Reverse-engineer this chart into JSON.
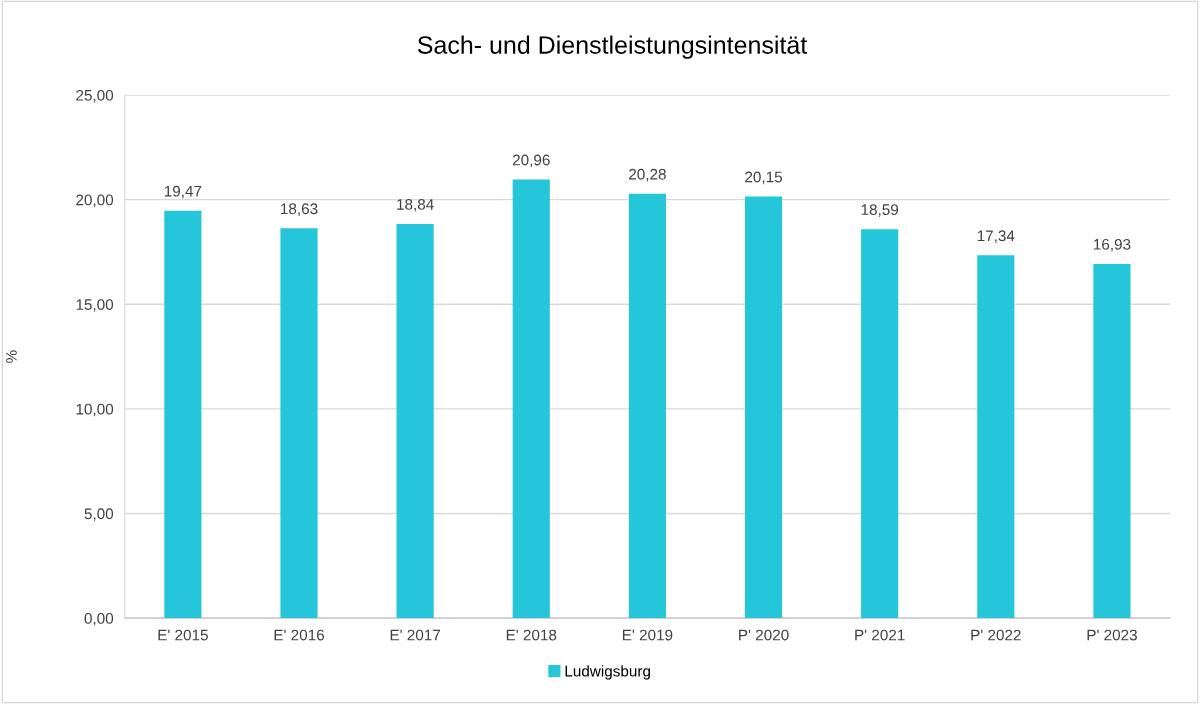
{
  "chart_data": {
    "type": "bar",
    "title": "Sach- und Dienstleistungsintensität",
    "ylabel": "%",
    "categories": [
      "E' 2015",
      "E' 2016",
      "E' 2017",
      "E' 2018",
      "E' 2019",
      "P' 2020",
      "P' 2021",
      "P' 2022",
      "P' 2023"
    ],
    "series": [
      {
        "name": "Ludwigsburg",
        "color": "#26c6da",
        "values": [
          19.47,
          18.63,
          18.84,
          20.96,
          20.28,
          20.15,
          18.59,
          17.34,
          16.93
        ],
        "value_labels": [
          "19,47",
          "18,63",
          "18,84",
          "20,96",
          "20,28",
          "20,15",
          "18,59",
          "17,34",
          "16,93"
        ]
      }
    ],
    "ylim": [
      0,
      25
    ],
    "yticks": [
      {
        "value": 0,
        "label": "0,00"
      },
      {
        "value": 5,
        "label": "5,00"
      },
      {
        "value": 10,
        "label": "10,00"
      },
      {
        "value": 15,
        "label": "15,00"
      },
      {
        "value": 20,
        "label": "20,00"
      },
      {
        "value": 25,
        "label": "25,00"
      }
    ],
    "grid": "y",
    "legend": "bottom"
  }
}
